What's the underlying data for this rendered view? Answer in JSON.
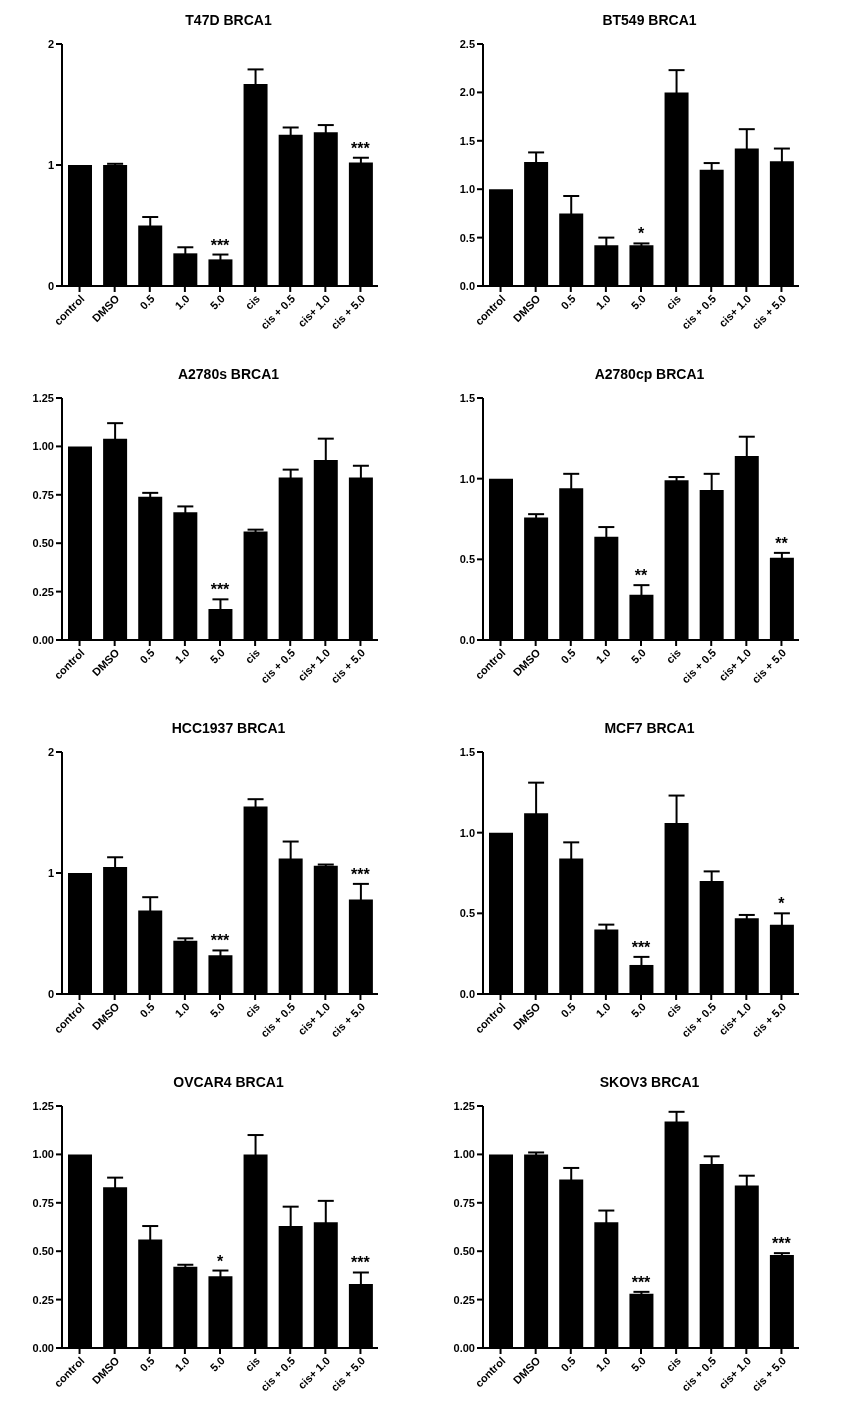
{
  "chart_data": [
    {
      "type": "bar",
      "title": "T47D BRCA1",
      "categories": [
        "control",
        "DMSO",
        "0.5",
        "1.0",
        "5.0",
        "cis",
        "cis + 0.5",
        "cis+ 1.0",
        "cis + 5.0"
      ],
      "values": [
        1.0,
        1.0,
        0.5,
        0.27,
        0.22,
        1.67,
        1.25,
        1.27,
        1.02
      ],
      "errors": [
        null,
        0.01,
        0.07,
        0.05,
        0.04,
        0.12,
        0.06,
        0.06,
        0.04
      ],
      "color": "#000000",
      "ylim": [
        0,
        2
      ],
      "yticks": [
        0,
        1,
        2
      ],
      "annotations": [
        {
          "text": "***",
          "x": "5.0",
          "y": 0.26
        },
        {
          "text": "***",
          "x": "cis + 5.0",
          "y": 1.06
        }
      ]
    },
    {
      "type": "bar",
      "title": "BT549 BRCA1",
      "categories": [
        "control",
        "DMSO",
        "0.5",
        "1.0",
        "5.0",
        "cis",
        "cis + 0.5",
        "cis+ 1.0",
        "cis + 5.0"
      ],
      "values": [
        1.0,
        1.28,
        0.75,
        0.42,
        0.42,
        2.0,
        1.2,
        1.42,
        1.29
      ],
      "errors": [
        null,
        0.1,
        0.18,
        0.08,
        0.02,
        0.23,
        0.07,
        0.2,
        0.13
      ],
      "color": "#000000",
      "ylim": [
        0,
        2.5
      ],
      "yticks": [
        {
          "value": 0,
          "label": "0.0"
        },
        0.5,
        {
          "value": 1,
          "label": "1.0"
        },
        1.5,
        {
          "value": 2,
          "label": "2.0"
        },
        2.5
      ],
      "annotations": [
        {
          "text": "*",
          "x": "5.0",
          "y": 0.44
        }
      ]
    },
    {
      "type": "bar",
      "title": "A2780s BRCA1",
      "categories": [
        "control",
        "DMSO",
        "0.5",
        "1.0",
        "5.0",
        "cis",
        "cis + 0.5",
        "cis+ 1.0",
        "cis + 5.0"
      ],
      "values": [
        1.0,
        1.04,
        0.74,
        0.66,
        0.16,
        0.56,
        0.84,
        0.93,
        0.84
      ],
      "errors": [
        null,
        0.08,
        0.02,
        0.03,
        0.05,
        0.01,
        0.04,
        0.11,
        0.06
      ],
      "color": "#000000",
      "ylim": [
        0,
        1.25
      ],
      "yticks": [
        {
          "value": 0,
          "label": "0.00"
        },
        0.25,
        {
          "value": 0.5,
          "label": "0.50"
        },
        0.75,
        {
          "value": 1,
          "label": "1.00"
        },
        1.25
      ],
      "annotations": [
        {
          "text": "***",
          "x": "5.0",
          "y": 0.21
        }
      ]
    },
    {
      "type": "bar",
      "title": "A2780cp BRCA1",
      "categories": [
        "control",
        "DMSO",
        "0.5",
        "1.0",
        "5.0",
        "cis",
        "cis + 0.5",
        "cis+ 1.0",
        "cis + 5.0"
      ],
      "values": [
        1.0,
        0.76,
        0.94,
        0.64,
        0.28,
        0.99,
        0.93,
        1.14,
        0.51
      ],
      "errors": [
        null,
        0.02,
        0.09,
        0.06,
        0.06,
        0.02,
        0.1,
        0.12,
        0.03
      ],
      "color": "#000000",
      "ylim": [
        0,
        1.5
      ],
      "yticks": [
        {
          "value": 0,
          "label": "0.0"
        },
        0.5,
        {
          "value": 1,
          "label": "1.0"
        },
        1.5
      ],
      "annotations": [
        {
          "text": "**",
          "x": "5.0",
          "y": 0.34
        },
        {
          "text": "**",
          "x": "cis + 5.0",
          "y": 0.54
        }
      ]
    },
    {
      "type": "bar",
      "title": "HCC1937 BRCA1",
      "categories": [
        "control",
        "DMSO",
        "0.5",
        "1.0",
        "5.0",
        "cis",
        "cis + 0.5",
        "cis+ 1.0",
        "cis + 5.0"
      ],
      "values": [
        1.0,
        1.05,
        0.69,
        0.44,
        0.32,
        1.55,
        1.12,
        1.06,
        0.78
      ],
      "errors": [
        null,
        0.08,
        0.11,
        0.02,
        0.04,
        0.06,
        0.14,
        0.01,
        0.13
      ],
      "color": "#000000",
      "ylim": [
        0,
        2
      ],
      "yticks": [
        0,
        1,
        2
      ],
      "annotations": [
        {
          "text": "***",
          "x": "5.0",
          "y": 0.36
        },
        {
          "text": "***",
          "x": "cis + 5.0",
          "y": 0.91
        }
      ]
    },
    {
      "type": "bar",
      "title": "MCF7 BRCA1",
      "categories": [
        "control",
        "DMSO",
        "0.5",
        "1.0",
        "5.0",
        "cis",
        "cis + 0.5",
        "cis+ 1.0",
        "cis + 5.0"
      ],
      "values": [
        1.0,
        1.12,
        0.84,
        0.4,
        0.18,
        1.06,
        0.7,
        0.47,
        0.43
      ],
      "errors": [
        null,
        0.19,
        0.1,
        0.03,
        0.05,
        0.17,
        0.06,
        0.02,
        0.07
      ],
      "color": "#000000",
      "ylim": [
        0,
        1.5
      ],
      "yticks": [
        {
          "value": 0,
          "label": "0.0"
        },
        0.5,
        {
          "value": 1,
          "label": "1.0"
        },
        1.5
      ],
      "annotations": [
        {
          "text": "***",
          "x": "5.0",
          "y": 0.23
        },
        {
          "text": "*",
          "x": "cis + 5.0",
          "y": 0.5
        }
      ]
    },
    {
      "type": "bar",
      "title": "OVCAR4 BRCA1",
      "categories": [
        "control",
        "DMSO",
        "0.5",
        "1.0",
        "5.0",
        "cis",
        "cis + 0.5",
        "cis+ 1.0",
        "cis + 5.0"
      ],
      "values": [
        1.0,
        0.83,
        0.56,
        0.42,
        0.37,
        1.0,
        0.63,
        0.65,
        0.33
      ],
      "errors": [
        null,
        0.05,
        0.07,
        0.01,
        0.03,
        0.1,
        0.1,
        0.11,
        0.06
      ],
      "color": "#000000",
      "ylim": [
        0,
        1.25
      ],
      "yticks": [
        {
          "value": 0,
          "label": "0.00"
        },
        0.25,
        {
          "value": 0.5,
          "label": "0.50"
        },
        0.75,
        {
          "value": 1,
          "label": "1.00"
        },
        1.25
      ],
      "annotations": [
        {
          "text": "*",
          "x": "5.0",
          "y": 0.4
        },
        {
          "text": "***",
          "x": "cis + 5.0",
          "y": 0.39
        }
      ]
    },
    {
      "type": "bar",
      "title": "SKOV3 BRCA1",
      "categories": [
        "control",
        "DMSO",
        "0.5",
        "1.0",
        "5.0",
        "cis",
        "cis + 0.5",
        "cis+ 1.0",
        "cis + 5.0"
      ],
      "values": [
        1.0,
        1.0,
        0.87,
        0.65,
        0.28,
        1.17,
        0.95,
        0.84,
        0.48
      ],
      "errors": [
        null,
        0.01,
        0.06,
        0.06,
        0.01,
        0.05,
        0.04,
        0.05,
        0.01
      ],
      "color": "#000000",
      "ylim": [
        0,
        1.25
      ],
      "yticks": [
        {
          "value": 0,
          "label": "0.00"
        },
        0.25,
        {
          "value": 0.5,
          "label": "0.50"
        },
        0.75,
        {
          "value": 1,
          "label": "1.00"
        },
        1.25
      ],
      "annotations": [
        {
          "text": "***",
          "x": "5.0",
          "y": 0.29
        },
        {
          "text": "***",
          "x": "cis + 5.0",
          "y": 0.49
        }
      ]
    }
  ]
}
